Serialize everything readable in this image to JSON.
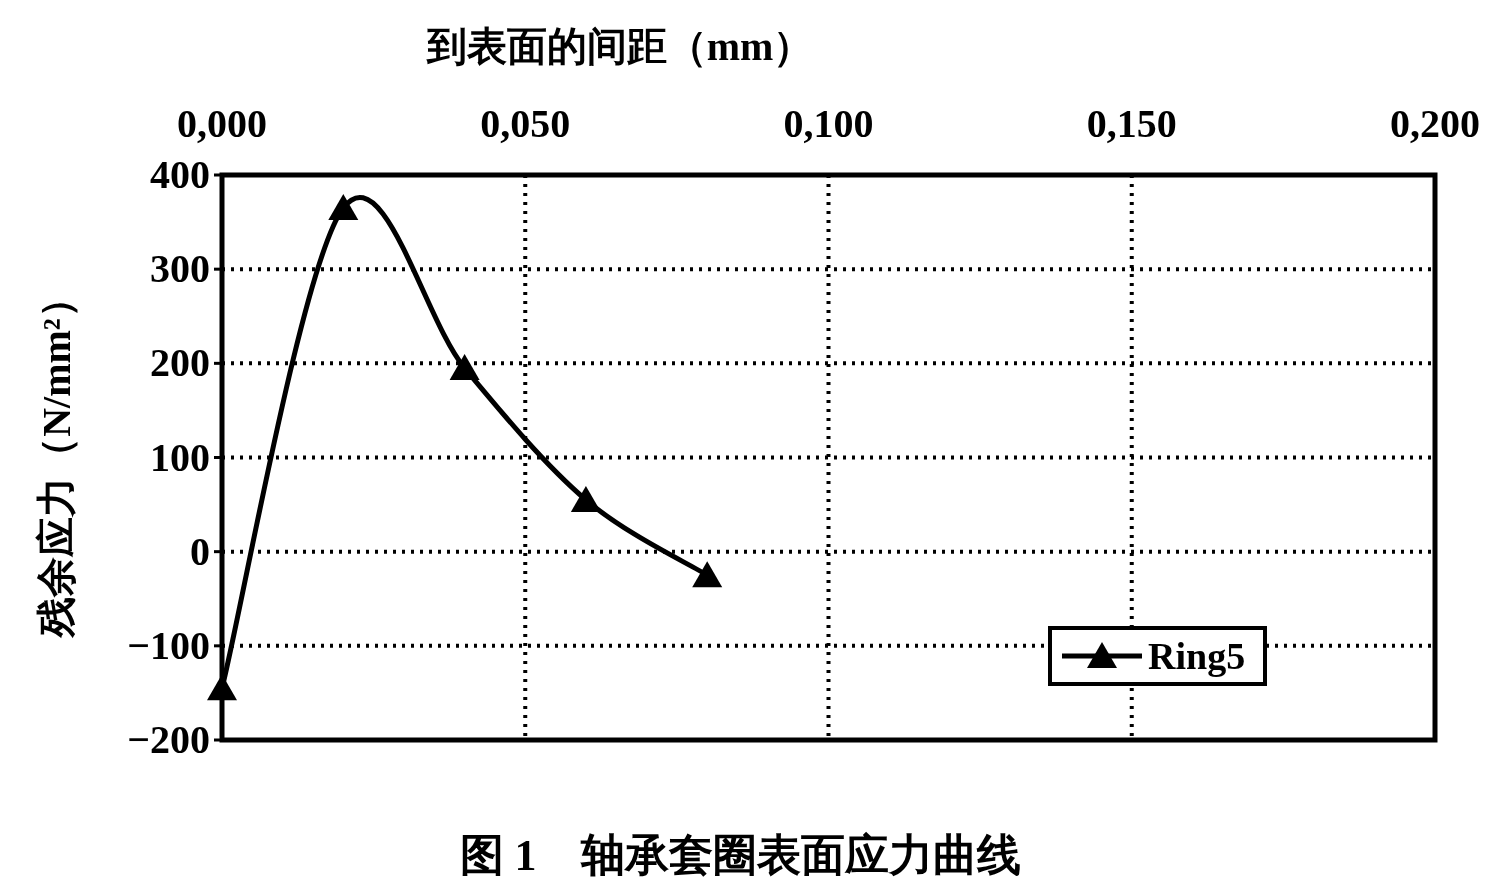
{
  "chart_data": {
    "type": "line",
    "title": "图 1　轴承套圈表面应力曲线",
    "xlabel": "到表面的间距（mm）",
    "ylabel": "残余应力（N/mm²）",
    "x": [
      0,
      0.02,
      0.04,
      0.06,
      0.08
    ],
    "series": [
      {
        "name": "Ring5",
        "color": "#000000",
        "values": [
          -145,
          365,
          195,
          55,
          -25
        ]
      }
    ],
    "xlim": [
      0,
      0.2
    ],
    "xticks": [
      {
        "value": 0,
        "label": "0,000"
      },
      {
        "value": 0.05,
        "label": "0,050"
      },
      {
        "value": 0.1,
        "label": "0,100"
      },
      {
        "value": 0.15,
        "label": "0,150"
      },
      {
        "value": 0.2,
        "label": "0,200"
      }
    ],
    "ylim": [
      -200,
      400
    ],
    "yticks": [
      -200,
      -100,
      0,
      100,
      200,
      300,
      400
    ],
    "grid": true,
    "legend": "bottom right",
    "marker": "triangle",
    "line_style": "solid"
  }
}
